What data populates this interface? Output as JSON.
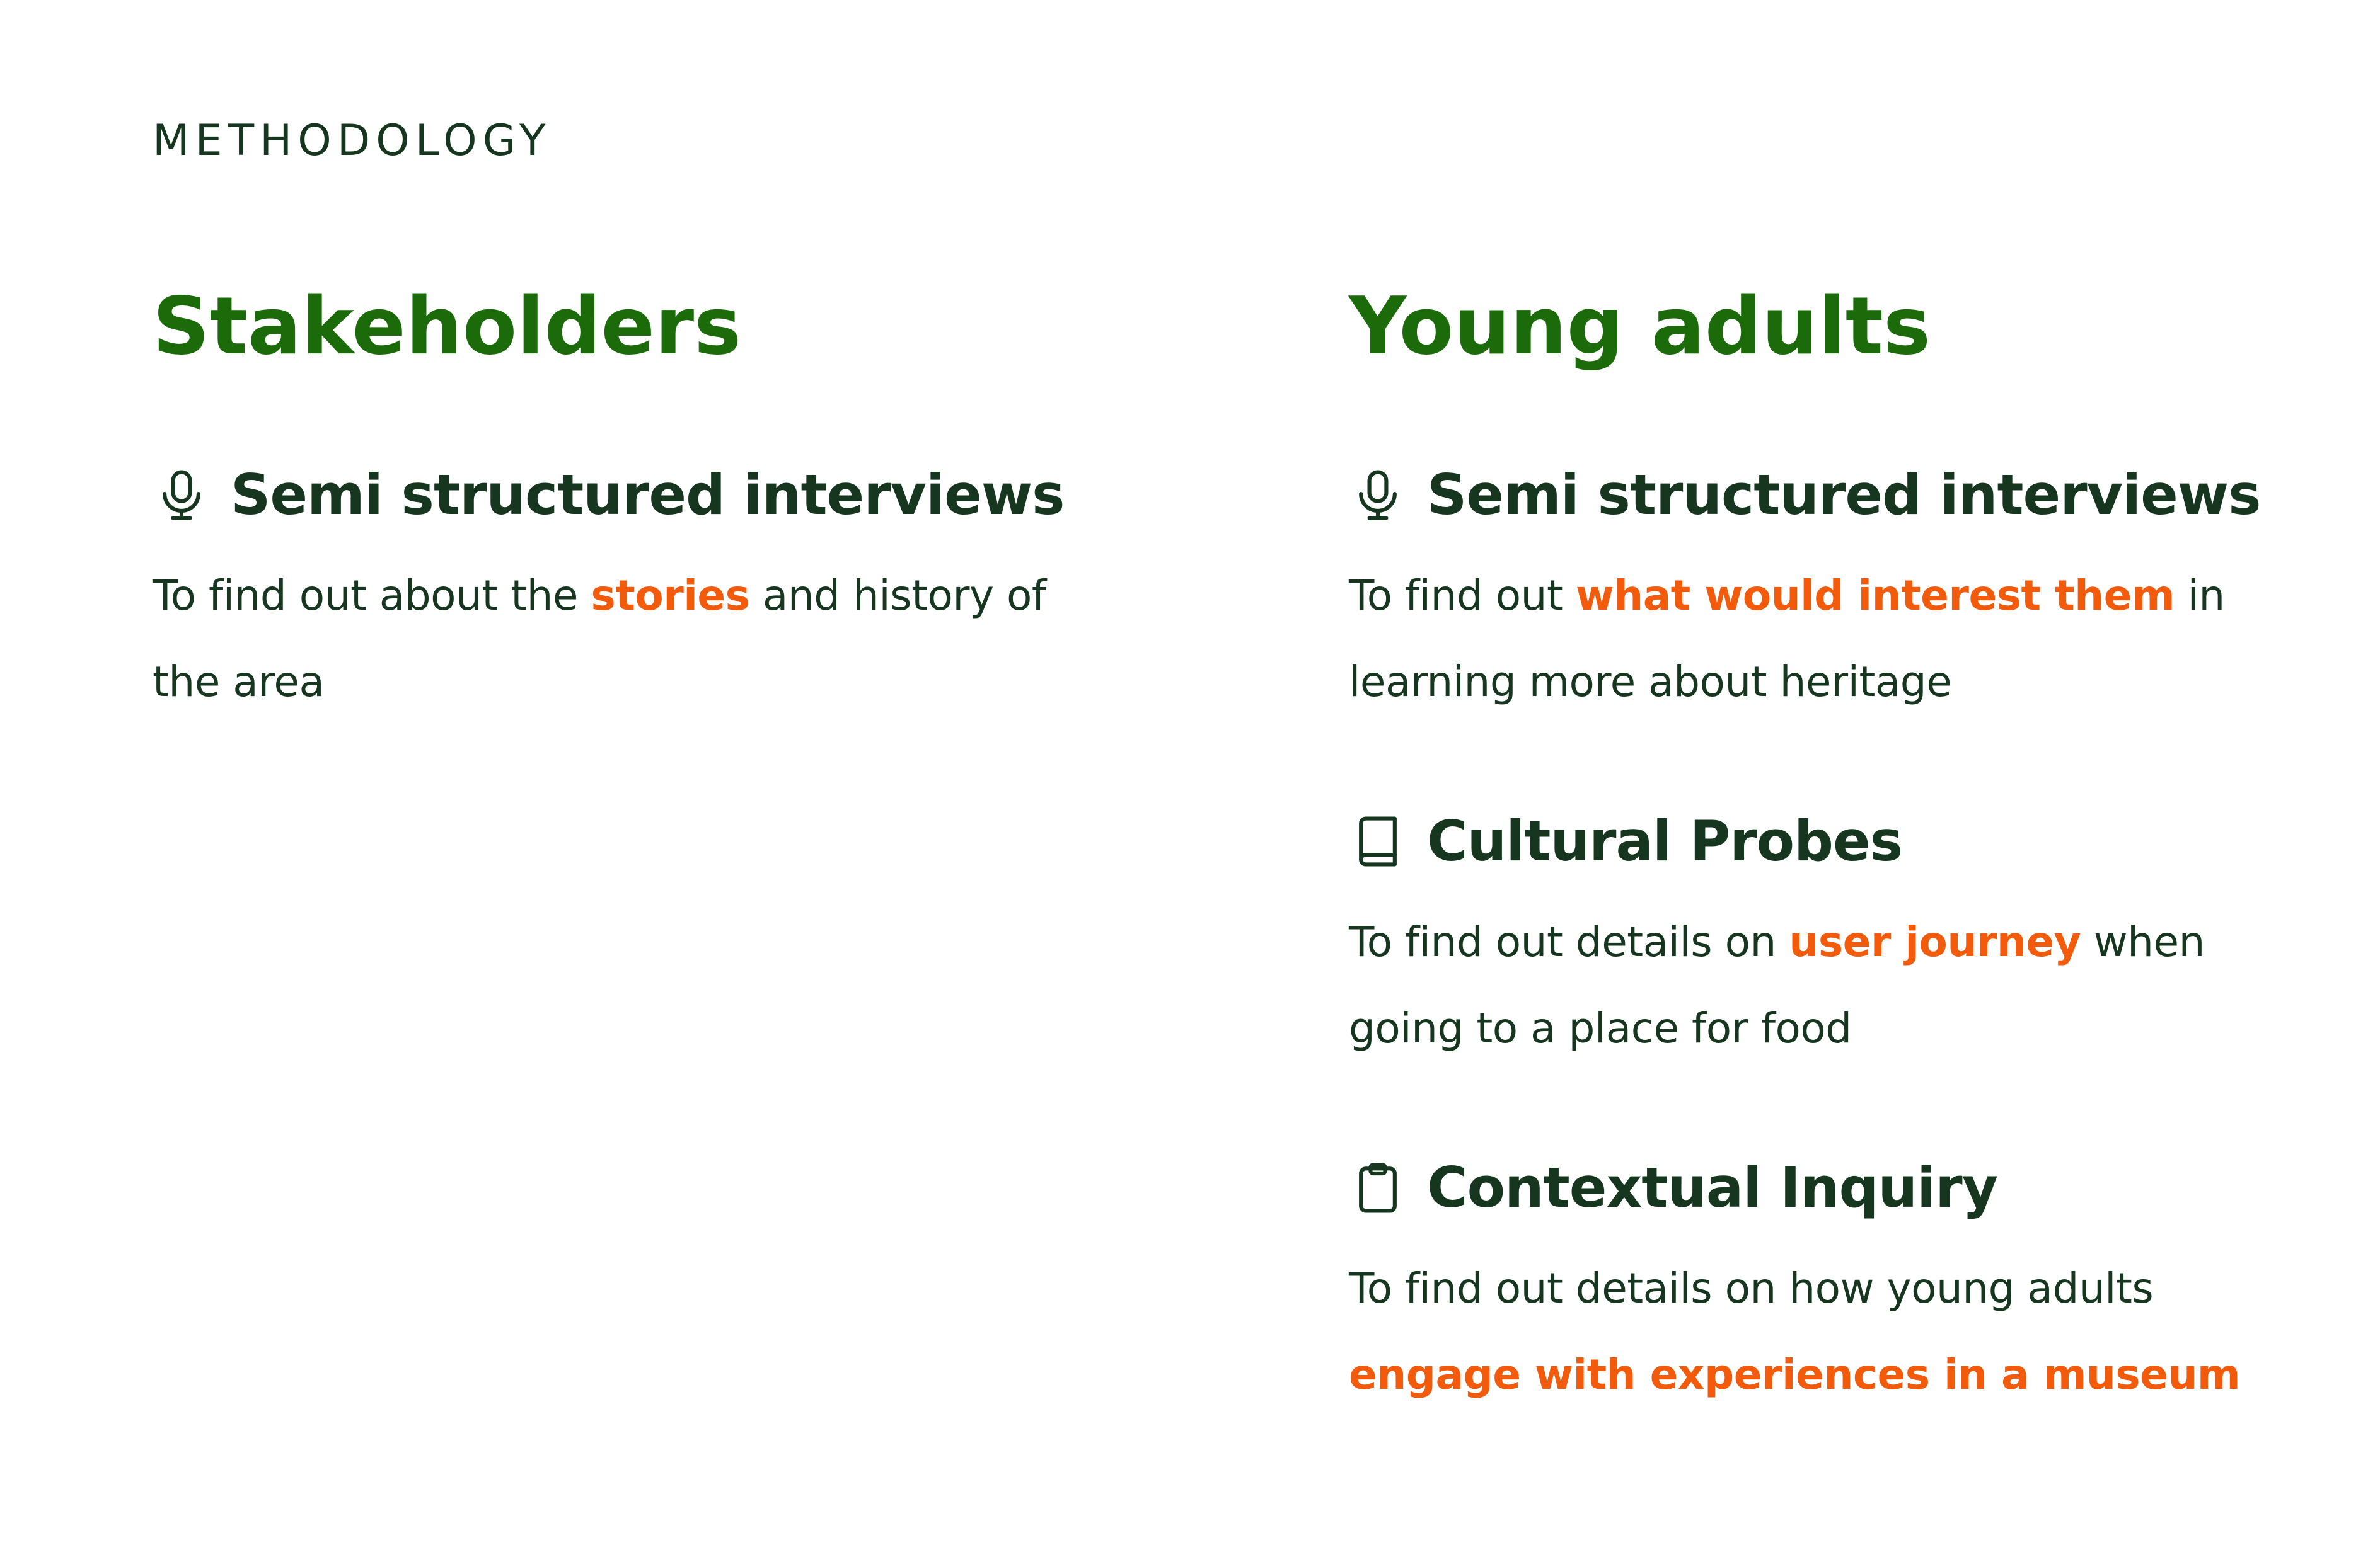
{
  "section_label": "METHODOLOGY",
  "colors": {
    "title_green": "#1c6b0a",
    "text_dark": "#17361f",
    "highlight_orange": "#f25a0c"
  },
  "stakeholders": {
    "title": "Stakeholders",
    "methods": [
      {
        "icon": "microphone-icon",
        "title": "Semi structured interviews",
        "desc_before": "To find out about the",
        "desc_highlight": "stories",
        "desc_after": "and history of the area"
      }
    ]
  },
  "young_adults": {
    "title": "Young adults",
    "methods": [
      {
        "icon": "microphone-icon",
        "title": "Semi structured interviews",
        "desc_before": "To find out",
        "desc_highlight": "what would interest them",
        "desc_after": "in learning more about heritage"
      },
      {
        "icon": "book-icon",
        "title": "Cultural Probes",
        "desc_before": "To find out details on",
        "desc_highlight": "user journey",
        "desc_after": "when going to a place for food"
      },
      {
        "icon": "clipboard-icon",
        "title": "Contextual Inquiry",
        "desc_before": "To find out details on how young adults",
        "desc_highlight": "engage with experiences in a museum",
        "desc_after": ""
      }
    ]
  }
}
